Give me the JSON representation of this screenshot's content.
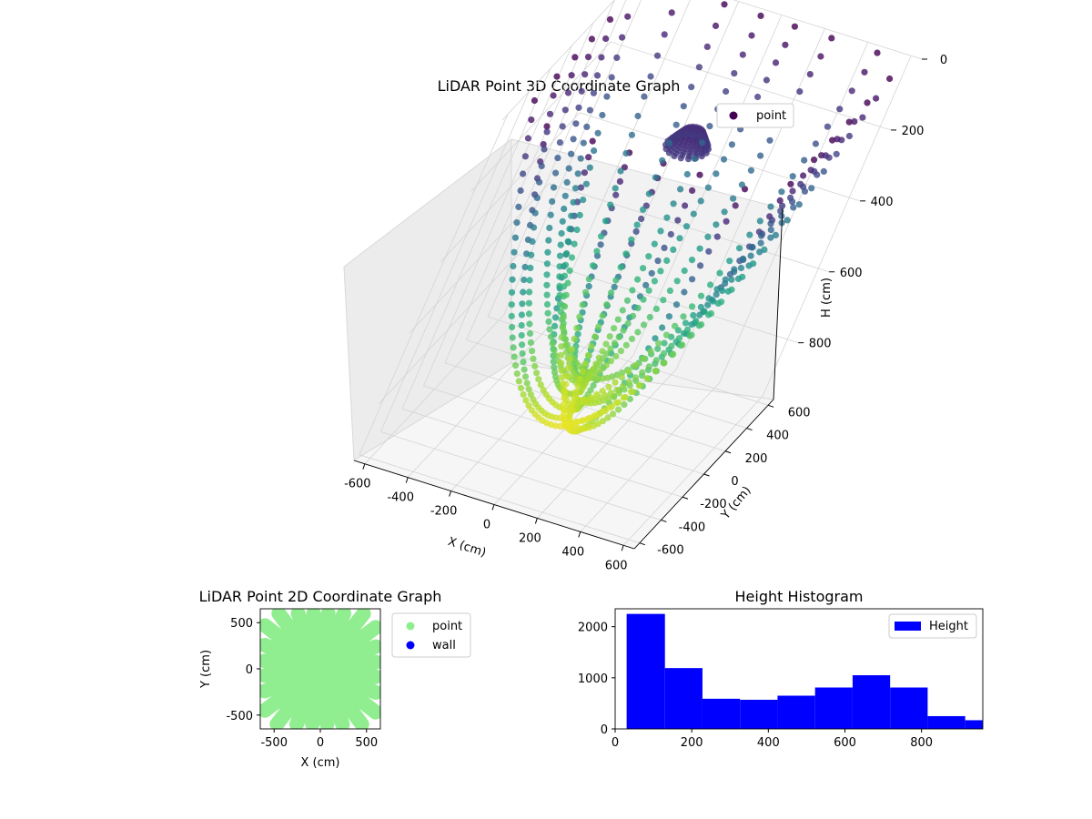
{
  "chart_data": [
    {
      "type": "scatter",
      "title": "LiDAR Point 3D Coordinate Graph",
      "xlabel": "X (cm)",
      "ylabel": "Y (cm)",
      "zlabel": "H (cm)",
      "xticks": [
        "-600",
        "-400",
        "-200",
        "0",
        "200",
        "400",
        "600"
      ],
      "yticks": [
        "-600",
        "-400",
        "-200",
        "0",
        "200",
        "400",
        "600"
      ],
      "zticks": [
        "0",
        "200",
        "400",
        "600",
        "800"
      ],
      "xlim": [
        -650,
        650
      ],
      "ylim": [
        -650,
        650
      ],
      "zlim": [
        960,
        0
      ],
      "z_axis_inverted": true,
      "colormap": "viridis",
      "grid": true,
      "legend": {
        "placement": "upper-right",
        "entries": [
          {
            "label": "point",
            "color": "#440154"
          }
        ]
      },
      "num_spokes": 24,
      "spoke_max_height_cm": 950
    },
    {
      "type": "scatter",
      "title": "LiDAR Point 2D Coordinate Graph",
      "xlabel": "X (cm)",
      "ylabel": "Y (cm)",
      "xticks": [
        "-500",
        "0",
        "500"
      ],
      "yticks": [
        "-500",
        "0",
        "500"
      ],
      "xlim": [
        -650,
        650
      ],
      "ylim": [
        -650,
        650
      ],
      "legend": {
        "placement": "outside-right",
        "entries": [
          {
            "label": "point",
            "color": "#90ee90"
          },
          {
            "label": "wall",
            "color": "#0000ff"
          }
        ]
      },
      "series": [
        {
          "name": "point",
          "color": "#90ee90"
        },
        {
          "name": "wall",
          "color": "#0000ff",
          "values": []
        }
      ]
    },
    {
      "type": "bar",
      "title": "Height Histogram",
      "xticks": [
        "0",
        "200",
        "400",
        "600",
        "800"
      ],
      "yticks": [
        "0",
        "1000",
        "2000"
      ],
      "xlim": [
        0,
        960
      ],
      "ylim": [
        0,
        2350
      ],
      "bin_edges": [
        30,
        130,
        228,
        326,
        424,
        522,
        620,
        718,
        816,
        914,
        1012
      ],
      "values": [
        2250,
        1190,
        590,
        570,
        650,
        810,
        1050,
        810,
        250,
        170
      ],
      "color": "#0000ff",
      "legend": {
        "placement": "upper-right",
        "entries": [
          {
            "label": "Height",
            "color": "#0000ff"
          }
        ]
      }
    }
  ]
}
